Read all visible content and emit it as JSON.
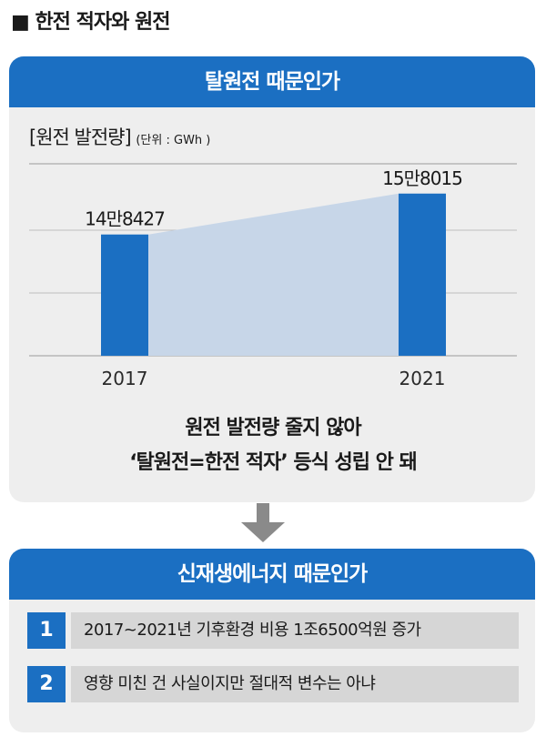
{
  "page": {
    "title": "■ 한전 적자와 원전"
  },
  "top_panel": {
    "header": "탈원전 때문인가",
    "chart_title": "[원전 발전량]",
    "chart_unit": "(단위 : GWh )",
    "conclusion_line1": "원전 발전량 줄지 않아",
    "conclusion_line2": "‘탈원전=한전 적자’ 등식 성립 안 돼"
  },
  "bottom_panel": {
    "header": "신재생에너지 때문인가",
    "items": [
      {
        "num": "1",
        "text": "2017~2021년 기후환경 비용 1조6500억원 증가"
      },
      {
        "num": "2",
        "text": "영향 미친 건 사실이지만 절대적 변수는 아냐"
      }
    ]
  },
  "colors": {
    "accent": "#1b6fc2",
    "panel_bg": "#eeeeee",
    "area_fill": "#c7d6e8",
    "arrow": "#8a8a8a"
  },
  "chart_data": {
    "type": "bar",
    "categories": [
      "2017",
      "2021"
    ],
    "values": [
      148427,
      158015
    ],
    "value_labels": [
      "14만8427",
      "15만8015"
    ],
    "title": "[원전 발전량]",
    "unit": "(단위 : GWh )",
    "ylim": [
      120000,
      165000
    ],
    "grid": true,
    "connector_area": true
  }
}
